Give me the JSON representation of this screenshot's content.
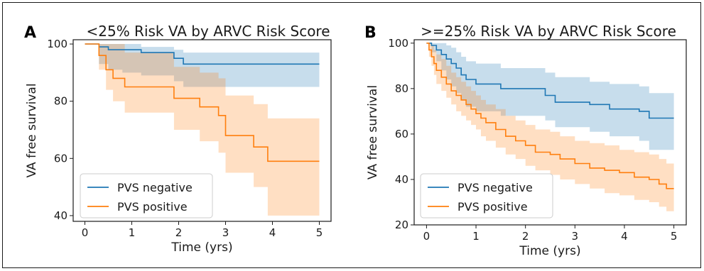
{
  "chart_data": [
    {
      "type": "line",
      "panel_label": "A",
      "title": "<25% Risk VA by ARVC Risk Score",
      "xlabel": "Time (yrs)",
      "ylabel": "VA free survival",
      "xlim": [
        -0.25,
        5.25
      ],
      "ylim": [
        38,
        101.5
      ],
      "xticks": [
        0,
        1,
        2,
        3,
        4,
        5
      ],
      "yticks": [
        40,
        60,
        80,
        100
      ],
      "legend_position": "lower-left",
      "series": [
        {
          "name": "PVS negative",
          "color": "#1f77b4",
          "x": [
            0,
            0.1,
            0.3,
            0.5,
            0.8,
            1.2,
            1.9,
            2.1,
            5.0
          ],
          "y": [
            100,
            100,
            99,
            98,
            98,
            97,
            95,
            93,
            93
          ],
          "ci_lower": [
            100,
            100,
            93,
            91,
            90,
            89,
            87,
            85,
            85
          ],
          "ci_upper": [
            100,
            100,
            100,
            100,
            100,
            99,
            98,
            97,
            97
          ]
        },
        {
          "name": "PVS positive",
          "color": "#ff7f0e",
          "x": [
            0,
            0.1,
            0.3,
            0.45,
            0.6,
            0.85,
            1.9,
            2.45,
            2.85,
            3.0,
            3.6,
            3.9,
            5.0
          ],
          "y": [
            100,
            100,
            96,
            91,
            88,
            85,
            81,
            78,
            75,
            68,
            64,
            59,
            59
          ],
          "ci_lower": [
            100,
            100,
            91,
            84,
            80,
            76,
            70,
            66,
            62,
            55,
            50,
            40,
            40
          ],
          "ci_upper": [
            100,
            100,
            100,
            100,
            100,
            97,
            92,
            90,
            88,
            82,
            79,
            74,
            74
          ]
        }
      ]
    },
    {
      "type": "line",
      "panel_label": "B",
      "title": ">=25% Risk VA by ARVC Risk Score",
      "xlabel": "Time (yrs)",
      "ylabel": "VA free survival",
      "xlim": [
        -0.25,
        5.25
      ],
      "ylim": [
        20,
        101.5
      ],
      "xticks": [
        0,
        1,
        2,
        3,
        4,
        5
      ],
      "yticks": [
        20,
        40,
        60,
        80,
        100
      ],
      "legend_position": "lower-left",
      "series": [
        {
          "name": "PVS negative",
          "color": "#1f77b4",
          "x": [
            0,
            0.1,
            0.2,
            0.3,
            0.4,
            0.5,
            0.6,
            0.7,
            0.8,
            1.0,
            1.5,
            2.4,
            2.6,
            3.3,
            3.7,
            4.3,
            4.5,
            5.0
          ],
          "y": [
            100,
            99,
            97,
            95,
            93,
            91,
            89,
            86,
            84,
            82,
            80,
            77,
            74,
            73,
            71,
            70,
            67,
            67
          ],
          "ci_lower": [
            100,
            96,
            92,
            88,
            84,
            81,
            78,
            75,
            72,
            70,
            68,
            66,
            63,
            61,
            59,
            57,
            53,
            53
          ],
          "ci_upper": [
            100,
            100,
            100,
            100,
            99,
            98,
            96,
            94,
            92,
            91,
            89,
            87,
            85,
            83,
            82,
            81,
            78,
            78
          ]
        },
        {
          "name": "PVS positive",
          "color": "#ff7f0e",
          "x": [
            0,
            0.05,
            0.1,
            0.15,
            0.2,
            0.3,
            0.4,
            0.5,
            0.6,
            0.7,
            0.8,
            0.9,
            1.0,
            1.1,
            1.2,
            1.4,
            1.6,
            1.8,
            2.0,
            2.2,
            2.5,
            2.7,
            3.0,
            3.3,
            3.6,
            3.9,
            4.2,
            4.5,
            4.7,
            4.85,
            5.0
          ],
          "y": [
            100,
            97,
            94,
            91,
            88,
            85,
            82,
            79,
            77,
            75,
            73,
            71,
            69,
            67,
            65,
            62,
            59,
            57,
            55,
            52,
            51,
            49,
            47,
            45,
            44,
            43,
            41,
            40,
            38,
            36,
            36
          ],
          "ci_lower": [
            100,
            94,
            90,
            86,
            82,
            79,
            76,
            73,
            70,
            68,
            66,
            64,
            62,
            59,
            57,
            54,
            51,
            49,
            46,
            44,
            42,
            40,
            38,
            36,
            34,
            33,
            31,
            30,
            28,
            26,
            26
          ],
          "ci_upper": [
            100,
            100,
            99,
            97,
            95,
            93,
            90,
            87,
            85,
            83,
            81,
            79,
            77,
            75,
            73,
            71,
            68,
            66,
            64,
            62,
            61,
            59,
            57,
            56,
            55,
            53,
            52,
            51,
            49,
            47,
            47
          ]
        }
      ]
    }
  ]
}
